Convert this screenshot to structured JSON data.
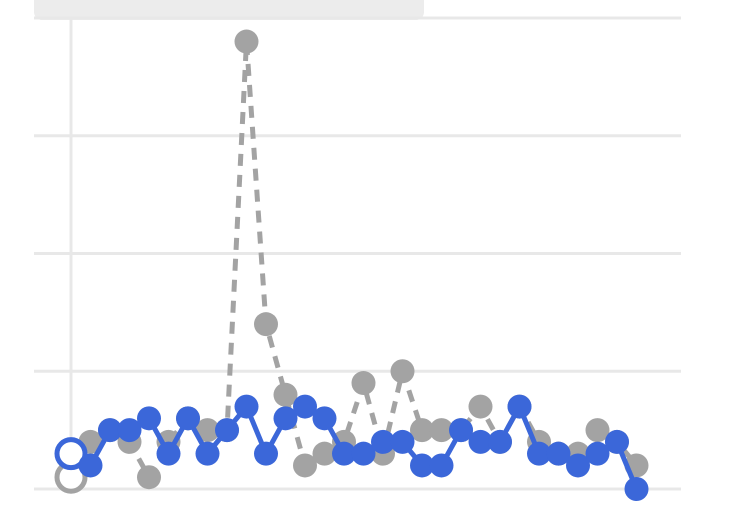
{
  "colors": {
    "background": "#ffffff",
    "grid": "#e8e8e8",
    "header_bar": "#ececec",
    "gray_series": "#a3a3a3",
    "blue_series": "#3b67d9"
  },
  "chart_data": {
    "type": "line",
    "title": "",
    "xlabel": "",
    "ylabel": "",
    "x": [
      0,
      1,
      2,
      3,
      4,
      5,
      6,
      7,
      8,
      9,
      10,
      11,
      12,
      13,
      14,
      15,
      16,
      17,
      18,
      19,
      20,
      21,
      22,
      23,
      24,
      25,
      26,
      27,
      28,
      29
    ],
    "xlim": [
      0,
      29
    ],
    "ylim": [
      0,
      40
    ],
    "grid": true,
    "legend": "none",
    "series": [
      {
        "color": "#a3a3a3",
        "line_style": "dashed",
        "values": [
          1,
          4,
          5,
          4,
          1,
          4,
          6,
          5,
          5,
          38,
          14,
          8,
          2,
          3,
          4,
          9,
          3,
          10,
          5,
          5,
          5,
          7,
          4,
          7,
          4,
          3,
          3,
          5,
          4,
          2
        ]
      },
      {
        "color": "#3b67d9",
        "line_style": "solid",
        "values": [
          3,
          2,
          5,
          5,
          6,
          3,
          6,
          3,
          5,
          7,
          3,
          6,
          7,
          6,
          3,
          3,
          4,
          4,
          2,
          2,
          5,
          4,
          4,
          7,
          3,
          3,
          2,
          3,
          4,
          0
        ]
      }
    ]
  }
}
